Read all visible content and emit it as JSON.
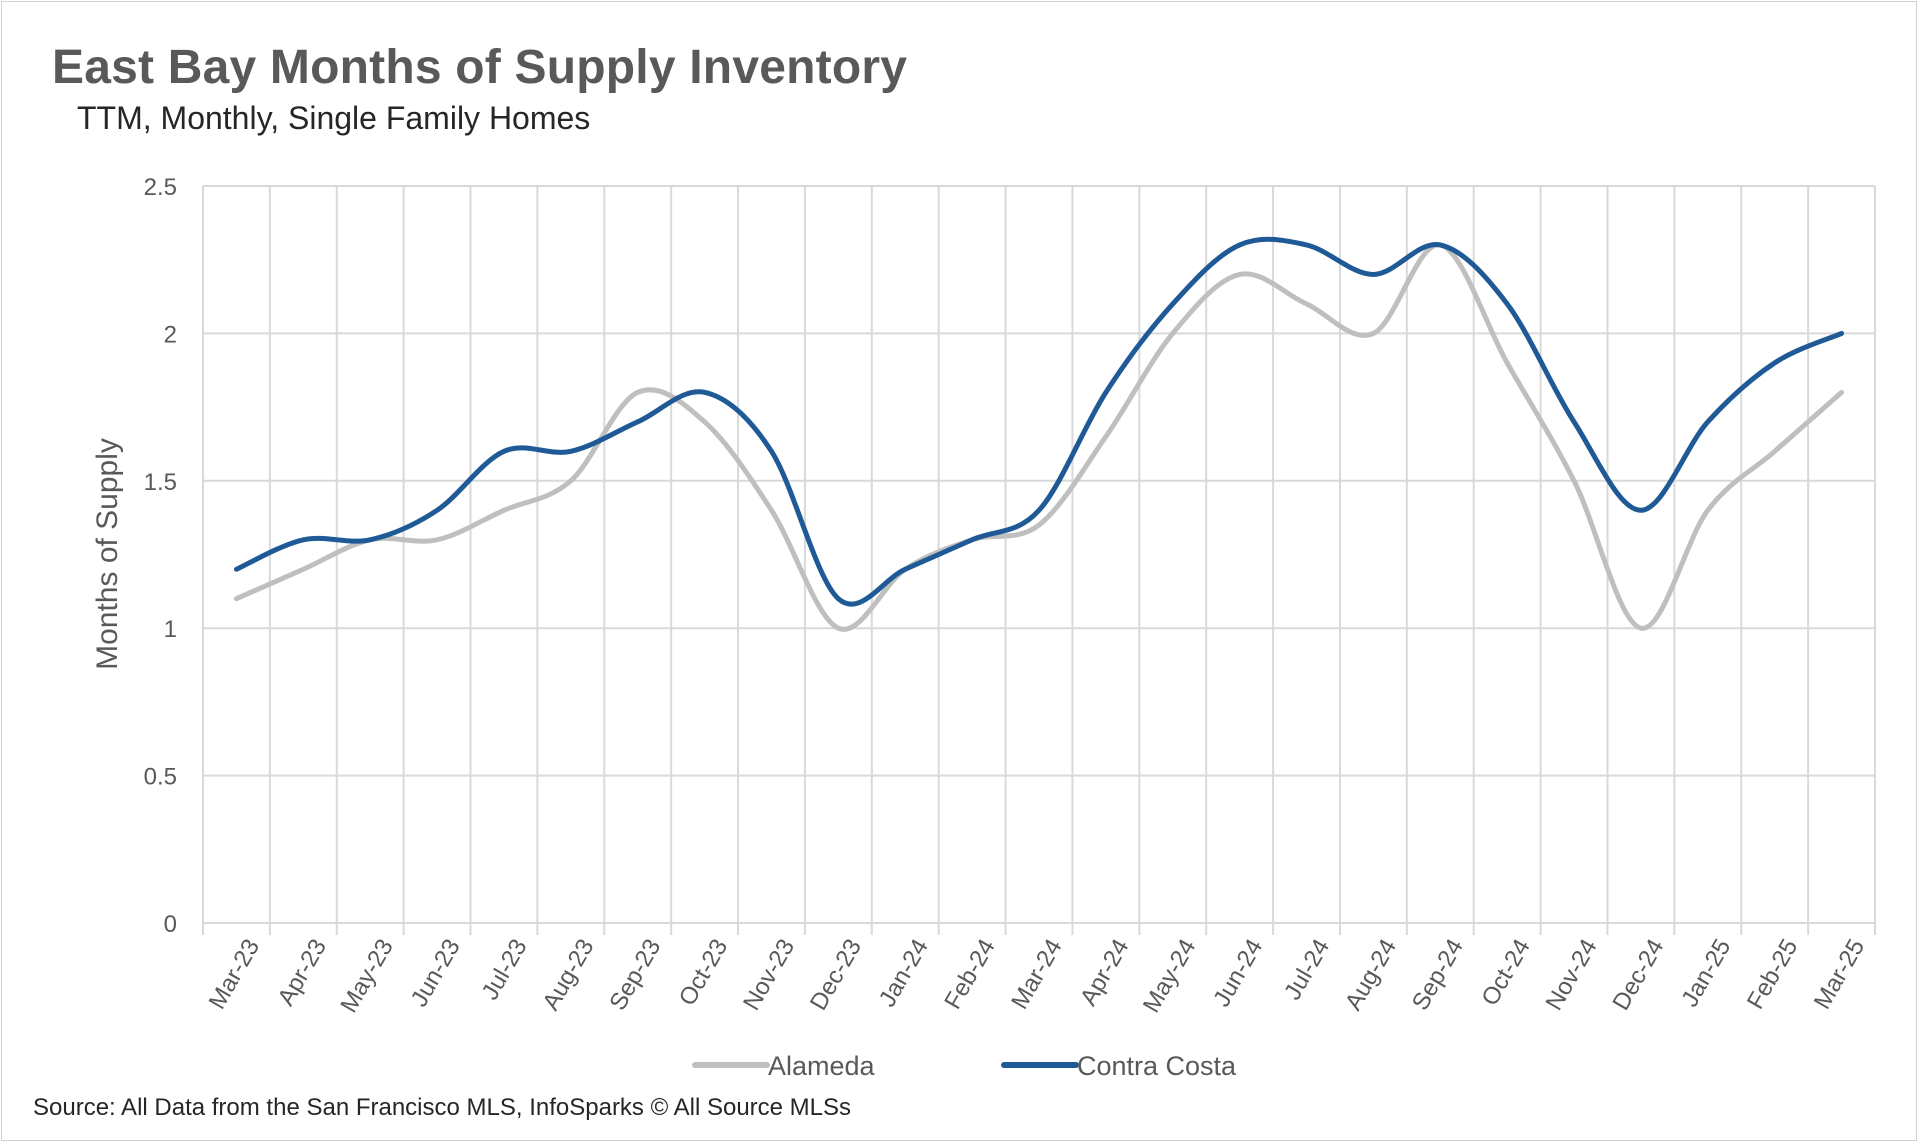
{
  "chart_data": {
    "type": "line",
    "title": "East Bay Months of Supply Inventory",
    "subtitle": "TTM, Monthly, Single Family Homes",
    "ylabel": "Months of Supply",
    "xlabel": "",
    "ylim": [
      0,
      2.5
    ],
    "yticks": [
      "0",
      "0.5",
      "1",
      "1.5",
      "2",
      "2.5"
    ],
    "categories": [
      "Mar-23",
      "Apr-23",
      "May-23",
      "Jun-23",
      "Jul-23",
      "Aug-23",
      "Sep-23",
      "Oct-23",
      "Nov-23",
      "Dec-23",
      "Jan-24",
      "Feb-24",
      "Mar-24",
      "Apr-24",
      "May-24",
      "Jun-24",
      "Jul-24",
      "Aug-24",
      "Sep-24",
      "Oct-24",
      "Nov-24",
      "Dec-24",
      "Jan-25",
      "Feb-25",
      "Mar-25"
    ],
    "series": [
      {
        "name": "Alameda",
        "color": "#bfbfbf",
        "values": [
          1.1,
          1.2,
          1.3,
          1.3,
          1.4,
          1.5,
          1.8,
          1.7,
          1.4,
          1.0,
          1.2,
          1.3,
          1.35,
          1.65,
          2.0,
          2.2,
          2.1,
          2.0,
          2.3,
          1.9,
          1.5,
          1.0,
          1.4,
          1.6,
          1.8
        ]
      },
      {
        "name": "Contra Costa",
        "color": "#1f5a96",
        "values": [
          1.2,
          1.3,
          1.3,
          1.4,
          1.6,
          1.6,
          1.7,
          1.8,
          1.6,
          1.1,
          1.2,
          1.3,
          1.4,
          1.8,
          2.1,
          2.3,
          2.3,
          2.2,
          2.3,
          2.1,
          1.7,
          1.4,
          1.7,
          1.9,
          2.0
        ]
      }
    ],
    "grid": true,
    "legend": "bottom"
  },
  "source": "Source: All Data from the San Francisco MLS, InfoSparks © All Source MLSs"
}
